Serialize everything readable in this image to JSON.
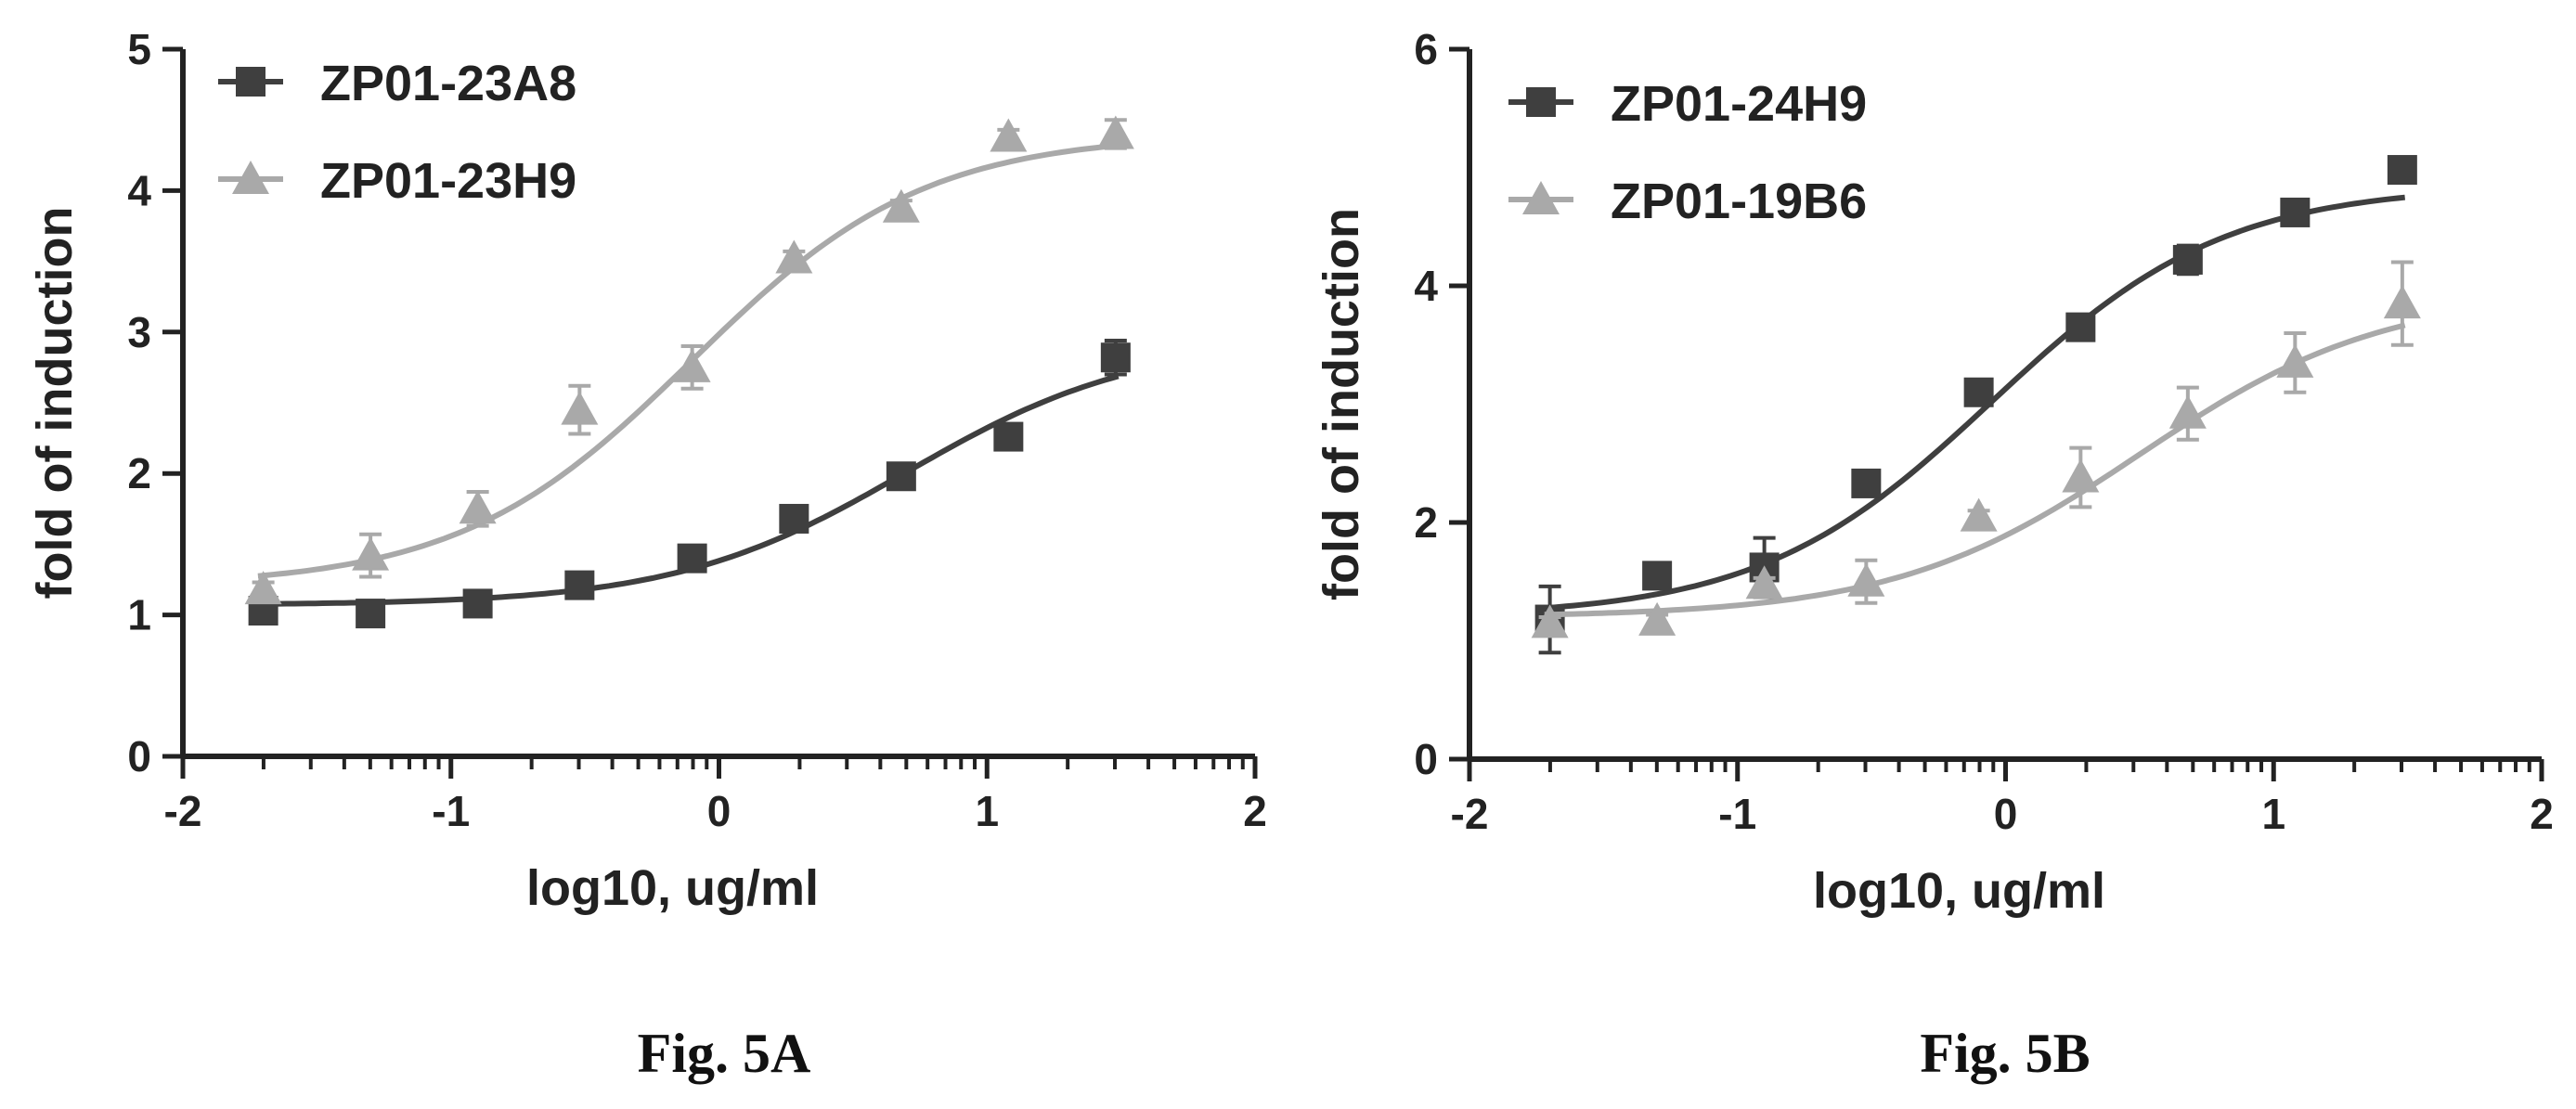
{
  "chart_data": [
    {
      "type": "line",
      "caption": "Fig. 5A",
      "xlabel": "log10, ug/ml",
      "ylabel": "fold of induction",
      "xlim": [
        -2,
        2
      ],
      "ylim": [
        0,
        5
      ],
      "xticks": [
        -2,
        -1,
        0,
        1,
        2
      ],
      "yticks": [
        0,
        1,
        2,
        3,
        4,
        5
      ],
      "x_tick_labels": [
        "-2",
        "-1",
        "0",
        "1",
        "2"
      ],
      "y_tick_labels": [
        "0",
        "1",
        "2",
        "3",
        "4",
        "5"
      ],
      "grid": false,
      "legend": "top-left",
      "x": [
        -1.7,
        -1.3,
        -0.9,
        -0.52,
        -0.1,
        0.28,
        0.68,
        1.08,
        1.48
      ],
      "series": [
        {
          "name": "ZP01-23A8",
          "marker": "square",
          "color": "#3f3f3f",
          "values": [
            1.03,
            1.01,
            1.08,
            1.21,
            1.4,
            1.68,
            1.98,
            2.26,
            2.82
          ],
          "errors": [
            0.05,
            0.03,
            0.03,
            0.05,
            0.06,
            0.06,
            0.05,
            0.06,
            0.12
          ],
          "fit": {
            "bottom": 1.07,
            "top": 2.95,
            "logEC50": 0.7,
            "hill": 1.0
          }
        },
        {
          "name": "ZP01-23H9",
          "marker": "triangle",
          "color": "#a9a9a9",
          "values": [
            1.18,
            1.42,
            1.75,
            2.45,
            2.75,
            3.52,
            3.88,
            4.38,
            4.4
          ],
          "errors": [
            0.05,
            0.15,
            0.12,
            0.17,
            0.15,
            0.05,
            0.05,
            0.05,
            0.1
          ],
          "fit": {
            "bottom": 1.2,
            "top": 4.4,
            "logEC50": -0.1,
            "hill": 1.0
          }
        }
      ]
    },
    {
      "type": "line",
      "caption": "Fig. 5B",
      "xlabel": "log10, ug/ml",
      "ylabel": "fold of induction",
      "xlim": [
        -2,
        2
      ],
      "ylim": [
        0,
        6
      ],
      "xticks": [
        -2,
        -1,
        0,
        1,
        2
      ],
      "yticks": [
        0,
        2,
        4,
        6
      ],
      "x_tick_labels": [
        "-2",
        "-1",
        "0",
        "1",
        "2"
      ],
      "y_tick_labels": [
        "0",
        "2",
        "4",
        "6"
      ],
      "grid": false,
      "legend": "top-left",
      "x": [
        -1.7,
        -1.3,
        -0.9,
        -0.52,
        -0.1,
        0.28,
        0.68,
        1.08,
        1.48
      ],
      "series": [
        {
          "name": "ZP01-24H9",
          "marker": "square",
          "color": "#3f3f3f",
          "values": [
            1.18,
            1.55,
            1.62,
            2.33,
            3.1,
            3.65,
            4.22,
            4.62,
            4.98
          ],
          "errors": [
            0.28,
            0.05,
            0.25,
            0.08,
            0.05,
            0.08,
            0.12,
            0.05,
            0.1
          ],
          "fit": {
            "bottom": 1.2,
            "top": 4.85,
            "logEC50": -0.05,
            "hill": 1.0
          }
        },
        {
          "name": "ZP01-19B6",
          "marker": "triangle",
          "color": "#a9a9a9",
          "values": [
            1.15,
            1.17,
            1.48,
            1.5,
            2.05,
            2.38,
            2.92,
            3.35,
            3.85
          ],
          "errors": [
            0.05,
            0.05,
            0.05,
            0.18,
            0.05,
            0.25,
            0.22,
            0.25,
            0.35
          ],
          "fit": {
            "bottom": 1.2,
            "top": 3.95,
            "logEC50": 0.5,
            "hill": 0.95
          }
        }
      ]
    }
  ]
}
